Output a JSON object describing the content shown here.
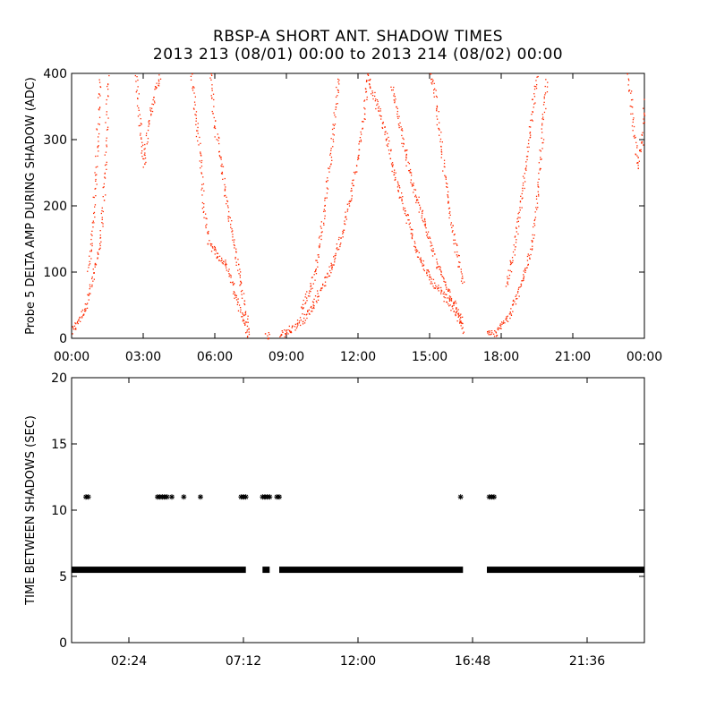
{
  "title": {
    "line1": "RBSP-A SHORT ANT. SHADOW TIMES",
    "line2": "2013 213 (08/01) 00:00 to 2013 214 (08/02) 00:00"
  },
  "colors": {
    "top_series": "#ff2a00",
    "bottom_series": "#000000",
    "axes": "#000000"
  },
  "chart_data": [
    {
      "type": "scatter",
      "panel": "top",
      "title": "",
      "ylabel": "Probe 5 DELTA AMP DURING SHADOW (ADC)",
      "xlabel": "",
      "x_unit": "hours",
      "xlim": [
        0,
        24
      ],
      "ylim": [
        0,
        400
      ],
      "x_ticks": [
        {
          "value": 0,
          "label": "00:00"
        },
        {
          "value": 3,
          "label": "03:00"
        },
        {
          "value": 6,
          "label": "06:00"
        },
        {
          "value": 9,
          "label": "09:00"
        },
        {
          "value": 12,
          "label": "12:00"
        },
        {
          "value": 15,
          "label": "15:00"
        },
        {
          "value": 18,
          "label": "18:00"
        },
        {
          "value": 21,
          "label": "21:00"
        },
        {
          "value": 24,
          "label": "00:00"
        }
      ],
      "y_ticks": [
        0,
        100,
        200,
        300,
        400
      ],
      "series": [
        {
          "values": [
            [
              0.0,
              10
            ],
            [
              0.3,
              30
            ],
            [
              0.6,
              50
            ],
            [
              0.8,
              80
            ],
            [
              1.0,
              110
            ],
            [
              1.2,
              150
            ],
            [
              1.4,
              250
            ],
            [
              1.5,
              400
            ]
          ]
        },
        {
          "values": [
            [
              0.7,
              100
            ],
            [
              0.9,
              180
            ],
            [
              1.0,
              250
            ],
            [
              1.1,
              330
            ],
            [
              1.2,
              400
            ]
          ]
        },
        {
          "values": [
            [
              2.7,
              400
            ],
            [
              2.8,
              350
            ],
            [
              2.9,
              300
            ],
            [
              3.0,
              260
            ],
            [
              3.2,
              330
            ],
            [
              3.4,
              360
            ],
            [
              3.7,
              400
            ]
          ]
        },
        {
          "values": [
            [
              5.0,
              400
            ],
            [
              5.2,
              330
            ],
            [
              5.4,
              260
            ],
            [
              5.5,
              200
            ],
            [
              5.7,
              150
            ],
            [
              6.0,
              130
            ],
            [
              6.5,
              110
            ],
            [
              7.0,
              50
            ],
            [
              7.4,
              5
            ]
          ]
        },
        {
          "values": [
            [
              5.8,
              400
            ],
            [
              6.0,
              320
            ],
            [
              6.3,
              250
            ],
            [
              6.6,
              180
            ],
            [
              6.9,
              120
            ],
            [
              7.2,
              60
            ],
            [
              7.4,
              5
            ]
          ]
        },
        {
          "values": [
            [
              8.1,
              5
            ],
            [
              8.3,
              5
            ]
          ]
        },
        {
          "values": [
            [
              8.7,
              5
            ],
            [
              9.2,
              15
            ],
            [
              9.7,
              30
            ],
            [
              10.1,
              50
            ],
            [
              10.5,
              80
            ],
            [
              10.9,
              110
            ],
            [
              11.3,
              160
            ],
            [
              11.7,
              220
            ],
            [
              12.0,
              280
            ],
            [
              12.2,
              330
            ],
            [
              12.4,
              400
            ]
          ]
        },
        {
          "values": [
            [
              9.6,
              40
            ],
            [
              9.9,
              70
            ],
            [
              10.2,
              100
            ],
            [
              10.4,
              150
            ],
            [
              10.6,
              200
            ],
            [
              10.9,
              300
            ],
            [
              11.2,
              400
            ]
          ]
        },
        {
          "values": [
            [
              12.4,
              400
            ],
            [
              12.6,
              370
            ],
            [
              12.9,
              340
            ],
            [
              13.2,
              300
            ],
            [
              13.5,
              250
            ],
            [
              13.9,
              200
            ],
            [
              14.3,
              150
            ],
            [
              14.7,
              110
            ],
            [
              15.2,
              80
            ],
            [
              15.7,
              60
            ],
            [
              16.1,
              40
            ],
            [
              16.4,
              10
            ]
          ]
        },
        {
          "values": [
            [
              13.4,
              380
            ],
            [
              13.7,
              330
            ],
            [
              14.2,
              240
            ],
            [
              14.8,
              170
            ],
            [
              15.3,
              110
            ],
            [
              15.8,
              70
            ],
            [
              16.4,
              20
            ]
          ]
        },
        {
          "values": [
            [
              15.0,
              400
            ],
            [
              15.2,
              370
            ],
            [
              15.6,
              250
            ],
            [
              16.0,
              150
            ],
            [
              16.4,
              80
            ]
          ]
        },
        {
          "values": [
            [
              17.4,
              5
            ],
            [
              17.8,
              10
            ],
            [
              18.2,
              30
            ],
            [
              18.6,
              60
            ],
            [
              19.0,
              100
            ],
            [
              19.3,
              150
            ],
            [
              19.5,
              220
            ],
            [
              19.7,
              300
            ],
            [
              19.9,
              400
            ]
          ]
        },
        {
          "values": [
            [
              18.2,
              80
            ],
            [
              18.5,
              130
            ],
            [
              18.8,
              200
            ],
            [
              19.1,
              280
            ],
            [
              19.3,
              350
            ],
            [
              19.5,
              400
            ]
          ]
        },
        {
          "values": [
            [
              23.3,
              400
            ],
            [
              23.5,
              330
            ],
            [
              23.7,
              260
            ],
            [
              23.9,
              300
            ],
            [
              24.0,
              380
            ]
          ]
        }
      ]
    },
    {
      "type": "scatter",
      "panel": "bottom",
      "title": "",
      "ylabel": "TIME BETWEEN SHADOWS (SEC)",
      "xlabel": "",
      "x_unit": "hours",
      "xlim": [
        0,
        24
      ],
      "ylim": [
        0,
        20
      ],
      "x_ticks": [
        {
          "value": 2.4,
          "label": "02:24"
        },
        {
          "value": 7.2,
          "label": "07:12"
        },
        {
          "value": 12.0,
          "label": "12:00"
        },
        {
          "value": 16.8,
          "label": "16:48"
        },
        {
          "value": 21.6,
          "label": "21:36"
        }
      ],
      "y_ticks": [
        0,
        5,
        10,
        15,
        20
      ],
      "marker": "asterisk",
      "series": [
        {
          "y": 5.5,
          "x_ranges": [
            [
              0.0,
              7.3
            ],
            [
              8.0,
              8.3
            ],
            [
              8.7,
              16.4
            ],
            [
              17.4,
              24.0
            ]
          ]
        },
        {
          "y": 11.0,
          "x_points": [
            0.6,
            0.7,
            3.6,
            3.7,
            3.8,
            3.9,
            4.0,
            4.2,
            4.7,
            5.4,
            7.1,
            7.2,
            7.3,
            8.0,
            8.1,
            8.2,
            8.3,
            8.6,
            8.7,
            16.3,
            17.5,
            17.6,
            17.7
          ]
        }
      ]
    }
  ]
}
